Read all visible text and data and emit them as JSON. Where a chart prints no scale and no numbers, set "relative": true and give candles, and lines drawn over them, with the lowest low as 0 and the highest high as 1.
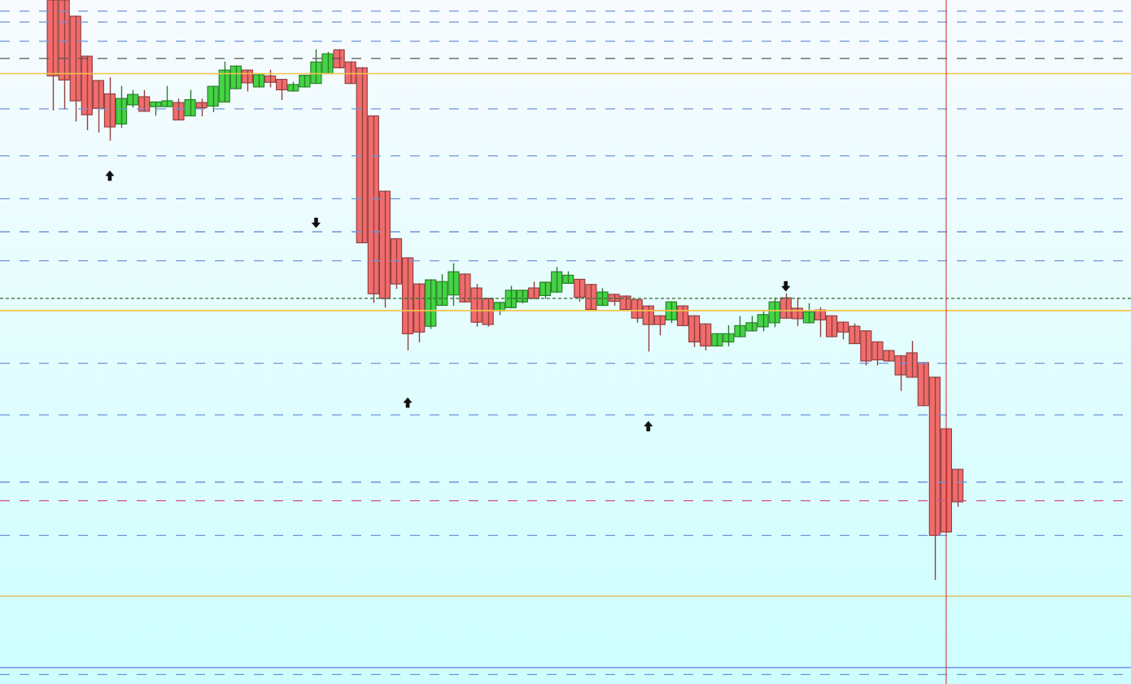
{
  "chart_data": {
    "type": "candlestick",
    "relative": true,
    "categories": [
      null,
      null,
      null,
      null,
      null,
      null,
      null,
      null,
      null,
      null,
      null,
      null,
      null,
      null,
      null,
      null,
      null,
      null,
      null,
      null,
      null,
      null,
      null,
      null,
      null,
      null,
      null,
      null,
      null,
      null,
      null,
      null,
      null,
      null,
      null,
      null,
      null,
      null,
      null,
      null,
      null,
      null,
      null,
      null,
      null,
      null,
      null,
      null,
      null,
      null,
      null,
      null,
      null,
      null,
      null,
      null,
      null,
      null,
      null,
      null,
      null,
      null,
      null,
      null,
      null,
      null,
      null,
      null,
      null,
      null,
      null,
      null,
      null,
      null,
      null,
      null,
      null,
      null,
      null,
      null
    ],
    "ohlc": [
      [
        1,
        1,
        0.81,
        0.869
      ],
      [
        1,
        1,
        0.812,
        0.862
      ],
      [
        0.972,
        0.972,
        0.791,
        0.826
      ],
      [
        0.903,
        0.903,
        0.776,
        0.802
      ],
      [
        0.861,
        0.861,
        0.772,
        0.813
      ],
      [
        0.838,
        0.866,
        0.758,
        0.781
      ],
      [
        0.786,
        0.851,
        0.78,
        0.83
      ],
      [
        0.819,
        0.844,
        0.815,
        0.837
      ],
      [
        0.833,
        0.844,
        0.808,
        0.808
      ],
      [
        0.816,
        0.824,
        0.801,
        0.824
      ],
      [
        0.816,
        0.851,
        0.816,
        0.826
      ],
      [
        0.823,
        0.829,
        0.793,
        0.793
      ],
      [
        0.8,
        0.844,
        0.8,
        0.828
      ],
      [
        0.823,
        0.829,
        0.8,
        0.814
      ],
      [
        0.817,
        0.851,
        0.807,
        0.851
      ],
      [
        0.824,
        0.893,
        0.824,
        0.879
      ],
      [
        0.847,
        0.886,
        0.847,
        0.886
      ],
      [
        0.879,
        0.879,
        0.843,
        0.857
      ],
      [
        0.85,
        0.871,
        0.85,
        0.871
      ],
      [
        0.869,
        0.879,
        0.85,
        0.858
      ],
      [
        0.863,
        0.863,
        0.828,
        0.845
      ],
      [
        0.843,
        0.858,
        0.843,
        0.854
      ],
      [
        0.85,
        0.87,
        0.85,
        0.87
      ],
      [
        0.856,
        0.914,
        0.856,
        0.893
      ],
      [
        0.873,
        0.91,
        0.873,
        0.907
      ],
      [
        0.914,
        0.914,
        0.883,
        0.883
      ],
      [
        0.893,
        0.893,
        0.856,
        0.856
      ],
      [
        0.883,
        0.883,
        0.581,
        0.581
      ],
      [
        0.8,
        0.8,
        0.478,
        0.493
      ],
      [
        0.67,
        0.67,
        0.47,
        0.485
      ],
      [
        0.588,
        0.588,
        0.502,
        0.51
      ],
      [
        0.555,
        0.555,
        0.396,
        0.424
      ],
      [
        0.51,
        0.51,
        0.41,
        0.427
      ],
      [
        0.437,
        0.517,
        0.433,
        0.517
      ],
      [
        0.473,
        0.526,
        0.473,
        0.514
      ],
      [
        0.491,
        0.545,
        0.473,
        0.531
      ],
      [
        0.527,
        0.527,
        0.479,
        0.479
      ],
      [
        0.503,
        0.509,
        0.437,
        0.444
      ],
      [
        0.485,
        0.485,
        0.437,
        0.44
      ],
      [
        0.464,
        0.478,
        0.457,
        0.478
      ],
      [
        0.469,
        0.506,
        0.469,
        0.499
      ],
      [
        0.479,
        0.499,
        0.477,
        0.499
      ],
      [
        0.503,
        0.513,
        0.485,
        0.485
      ],
      [
        0.49,
        0.513,
        0.485,
        0.513
      ],
      [
        0.496,
        0.539,
        0.496,
        0.531
      ],
      [
        0.511,
        0.531,
        0.511,
        0.525
      ],
      [
        0.518,
        0.518,
        0.48,
        0.487
      ],
      [
        0.509,
        0.509,
        0.466,
        0.466
      ],
      [
        0.473,
        0.502,
        0.473,
        0.496
      ],
      [
        0.492,
        0.492,
        0.473,
        0.48
      ],
      [
        0.489,
        0.489,
        0.466,
        0.466
      ],
      [
        0.483,
        0.483,
        0.444,
        0.451
      ],
      [
        0.472,
        0.472,
        0.394,
        0.44
      ],
      [
        0.455,
        0.455,
        0.422,
        0.44
      ],
      [
        0.448,
        0.479,
        0.443,
        0.479
      ],
      [
        0.472,
        0.472,
        0.438,
        0.438
      ],
      [
        0.455,
        0.455,
        0.402,
        0.41
      ],
      [
        0.441,
        0.441,
        0.396,
        0.403
      ],
      [
        0.403,
        0.424,
        0.403,
        0.424
      ],
      [
        0.41,
        0.438,
        0.403,
        0.424
      ],
      [
        0.419,
        0.454,
        0.419,
        0.438
      ],
      [
        0.429,
        0.454,
        0.429,
        0.443
      ],
      [
        0.436,
        0.462,
        0.429,
        0.457
      ],
      [
        0.443,
        0.486,
        0.436,
        0.479
      ],
      [
        0.486,
        0.493,
        0.451,
        0.451
      ],
      [
        0.468,
        0.486,
        0.438,
        0.45
      ],
      [
        0.443,
        0.476,
        0.443,
        0.462
      ],
      [
        0.465,
        0.469,
        0.419,
        0.448
      ],
      [
        0.455,
        0.455,
        0.419,
        0.419
      ],
      [
        0.444,
        0.444,
        0.415,
        0.427
      ],
      [
        0.437,
        0.441,
        0.407,
        0.407
      ],
      [
        0.429,
        0.429,
        0.37,
        0.377
      ],
      [
        0.41,
        0.41,
        0.37,
        0.379
      ],
      [
        0.395,
        0.395,
        0.377,
        0.377
      ],
      [
        0.386,
        0.386,
        0.326,
        0.353
      ],
      [
        0.391,
        0.411,
        0.349,
        0.349
      ],
      [
        0.374,
        0.374,
        0.3,
        0.3
      ],
      [
        0.349,
        0.349,
        0,
        0.076
      ],
      [
        0.26,
        0.26,
        0.082,
        0.082
      ],
      [
        0.19,
        0.19,
        0.126,
        0.134
      ]
    ],
    "colors": [
      "#f26c6c",
      "#f26c6c",
      "#f26c6c",
      "#f26c6c",
      "#f26c6c",
      "#f26c6c",
      "#44d444",
      "#44d444",
      "#f26c6c",
      "#44d444",
      "#44d444",
      "#f26c6c",
      "#44d444",
      "#f26c6c",
      "#44d444",
      "#44d444",
      "#44d444",
      "#f26c6c",
      "#44d444",
      "#f26c6c",
      "#f26c6c",
      "#44d444",
      "#44d444",
      "#44d444",
      "#44d444",
      "#f26c6c",
      "#f26c6c",
      "#f26c6c",
      "#f26c6c",
      "#f26c6c",
      "#f26c6c",
      "#f26c6c",
      "#f26c6c",
      "#44d444",
      "#44d444",
      "#44d444",
      "#f26c6c",
      "#f26c6c",
      "#f26c6c",
      "#44d444",
      "#44d444",
      "#44d444",
      "#f26c6c",
      "#44d444",
      "#44d444",
      "#44d444",
      "#f26c6c",
      "#f26c6c",
      "#44d444",
      "#f26c6c",
      "#f26c6c",
      "#f26c6c",
      "#f26c6c",
      "#f26c6c",
      "#44d444",
      "#f26c6c",
      "#f26c6c",
      "#f26c6c",
      "#44d444",
      "#44d444",
      "#44d444",
      "#44d444",
      "#44d444",
      "#44d444",
      "#f26c6c",
      "#f26c6c",
      "#44d444",
      "#f26c6c",
      "#f26c6c",
      "#f26c6c",
      "#f26c6c",
      "#f26c6c",
      "#f26c6c",
      "#f26c6c",
      "#f26c6c",
      "#f26c6c",
      "#f26c6c",
      "#f26c6c",
      "#f26c6c",
      "#f26c6c"
    ],
    "ref_lines": [
      {
        "axis": "y",
        "value": 0.981,
        "color": "#6f94d8",
        "line_style": "dashed"
      },
      {
        "axis": "y",
        "value": 0.962,
        "color": "#6f94d8",
        "line_style": "dashed"
      },
      {
        "axis": "y",
        "value": 0.929,
        "color": "#6f94d8",
        "line_style": "dashed"
      },
      {
        "axis": "y",
        "value": 0.899,
        "color": "#555555",
        "line_style": "dashed"
      },
      {
        "axis": "y",
        "value": 0.873,
        "color": "#f5c24a",
        "line_style": "solid"
      },
      {
        "axis": "y",
        "value": 0.812,
        "color": "#6f94d8",
        "line_style": "dashed"
      },
      {
        "axis": "y",
        "value": 0.731,
        "color": "#6f94d8",
        "line_style": "dashed"
      },
      {
        "axis": "y",
        "value": 0.657,
        "color": "#6f94d8",
        "line_style": "dashed"
      },
      {
        "axis": "y",
        "value": 0.6,
        "color": "#6f94d8",
        "line_style": "dashed"
      },
      {
        "axis": "y",
        "value": 0.55,
        "color": "#6f94d8",
        "line_style": "dashed"
      },
      {
        "axis": "y",
        "value": 0.485,
        "color": "#2e6b2e",
        "line_style": "dotted"
      },
      {
        "axis": "y",
        "value": 0.464,
        "color": "#f5c24a",
        "line_style": "solid"
      },
      {
        "axis": "y",
        "value": 0.373,
        "color": "#6f94d8",
        "line_style": "dashed"
      },
      {
        "axis": "y",
        "value": 0.284,
        "color": "#6f94d8",
        "line_style": "dashed"
      },
      {
        "axis": "y",
        "value": 0.168,
        "color": "#6f94d8",
        "line_style": "dashed"
      },
      {
        "axis": "y",
        "value": 0.136,
        "color": "#d0508c",
        "line_style": "dashed"
      },
      {
        "axis": "y",
        "value": 0.076,
        "color": "#6f94d8",
        "line_style": "dashed"
      },
      {
        "axis": "y",
        "value": -0.029,
        "color": "#dccb78",
        "line_style": "solid"
      },
      {
        "axis": "y",
        "value": -0.152,
        "color": "#7b8ff0",
        "line_style": "solid"
      },
      {
        "axis": "y",
        "value": -0.164,
        "color": "#6f94d8",
        "line_style": "dashed"
      }
    ]
  }
}
